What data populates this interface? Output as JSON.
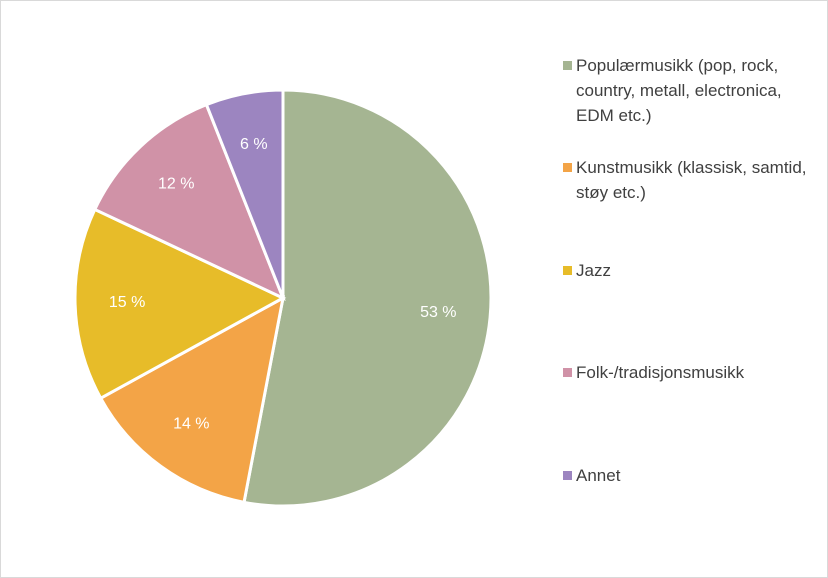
{
  "chart_data": {
    "type": "pie",
    "categories": [
      "Populærmusikk (pop, rock, country, metall, electronica, EDM etc.)",
      "Kunstmusikk (klassisk, samtid, støy etc.)",
      "Jazz",
      "Folk-/tradisjonsmusikk",
      "Annet"
    ],
    "values": [
      53,
      14,
      15,
      12,
      6
    ],
    "value_labels": [
      "53 %",
      "14 %",
      "15 %",
      "12 %",
      "6 %"
    ],
    "colors": [
      "#a5b592",
      "#f3a447",
      "#e7bc29",
      "#d092a7",
      "#9c85c0"
    ],
    "legend": "right"
  }
}
